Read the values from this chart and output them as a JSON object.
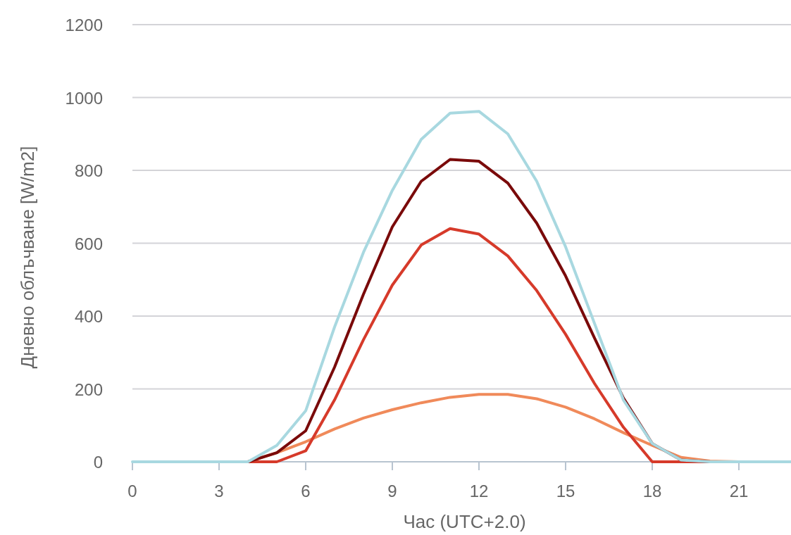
{
  "chart_data": {
    "type": "line",
    "xlabel": "Час (UTC+2.0)",
    "ylabel": "Дневно облъчване [W/m2]",
    "x": [
      0,
      1,
      2,
      3,
      4,
      5,
      6,
      7,
      8,
      9,
      10,
      11,
      12,
      13,
      14,
      15,
      16,
      17,
      18,
      19,
      20,
      21,
      22,
      23
    ],
    "series": [
      {
        "color": "#f08a5a",
        "values": [
          null,
          null,
          null,
          null,
          0,
          25,
          55,
          90,
          120,
          143,
          162,
          177,
          185,
          185,
          173,
          150,
          118,
          80,
          45,
          12,
          2,
          0,
          null,
          null
        ]
      },
      {
        "color": "#d63a2a",
        "values": [
          null,
          null,
          null,
          null,
          0,
          0,
          30,
          170,
          335,
          485,
          595,
          640,
          625,
          565,
          470,
          350,
          215,
          95,
          0,
          0,
          0,
          null,
          null,
          null
        ]
      },
      {
        "color": "#7a0a0a",
        "values": [
          null,
          null,
          null,
          null,
          0,
          25,
          85,
          260,
          460,
          645,
          770,
          830,
          825,
          765,
          655,
          510,
          340,
          175,
          50,
          5,
          0,
          null,
          null,
          null
        ]
      },
      {
        "color": "#a8d8e0",
        "values": [
          0,
          0,
          0,
          0,
          0,
          45,
          140,
          370,
          575,
          745,
          885,
          957,
          962,
          900,
          770,
          590,
          380,
          170,
          50,
          5,
          0,
          0,
          0,
          0
        ]
      }
    ],
    "xlim": [
      0,
      23
    ],
    "xticks": [
      0,
      3,
      6,
      9,
      12,
      15,
      18,
      21
    ],
    "ylim": [
      0,
      1200
    ],
    "yticks": [
      0,
      200,
      400,
      600,
      800,
      1000,
      1200
    ],
    "grid": "y",
    "line_style": "solid"
  }
}
